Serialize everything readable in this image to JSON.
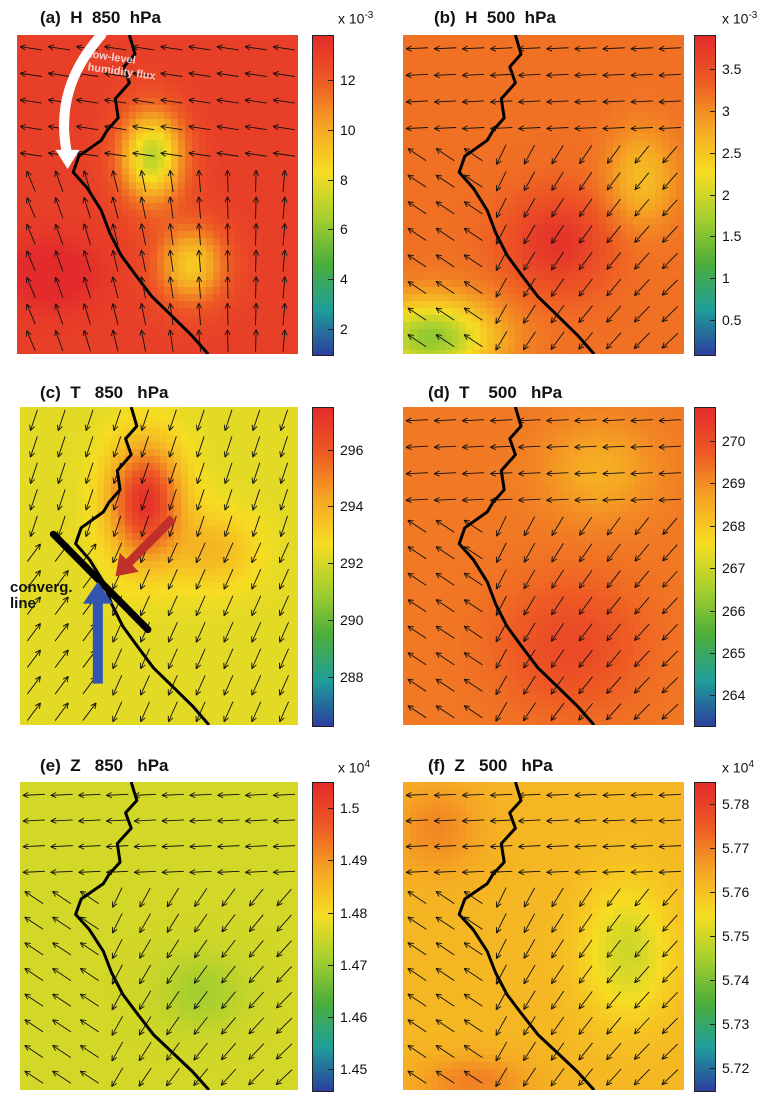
{
  "colorscale": [
    "#2b3f9e",
    "#1f9e9a",
    "#4cae3a",
    "#a6cf2e",
    "#f6dd22",
    "#f5a623",
    "#ee5a24",
    "#e32b2b"
  ],
  "annotations": {
    "flux_label": "low-level\nhumidity flux",
    "converg_label": "converg.\nline"
  },
  "chart_data": [
    {
      "panel": "a",
      "type": "heatmap",
      "title": "(a)  H  850  hPa",
      "variable": "H",
      "level_hPa": 850,
      "scale_label": "x 10",
      "scale_exponent": "-3",
      "colorbar": {
        "range": [
          1.0,
          13.8
        ],
        "ticks": [
          2,
          4,
          6,
          8,
          10,
          12
        ],
        "tick_labels": [
          "2",
          "4",
          "6",
          "8",
          "10",
          "12"
        ]
      },
      "field": {
        "base": 13.0,
        "lows": [
          [
            0.48,
            0.38,
            0.11,
            0.14,
            6.0
          ],
          [
            0.62,
            0.72,
            0.12,
            0.12,
            4.0
          ]
        ],
        "highs": [
          [
            0.12,
            0.75,
            0.15,
            0.1,
            1.5
          ]
        ]
      },
      "wind_pattern": "westward-north",
      "annotations": [
        "low-level humidity flux"
      ]
    },
    {
      "panel": "b",
      "type": "heatmap",
      "title": "(b)  H  500  hPa",
      "variable": "H",
      "level_hPa": 500,
      "scale_label": "x 10",
      "scale_exponent": "-3",
      "colorbar": {
        "range": [
          0.1,
          3.9
        ],
        "ticks": [
          0.5,
          1,
          1.5,
          2,
          2.5,
          3,
          3.5
        ],
        "tick_labels": [
          "0.5",
          "1",
          "1.5",
          "2",
          "2.5",
          "3",
          "3.5"
        ]
      },
      "field": {
        "base": 3.2,
        "lows": [
          [
            0.1,
            0.95,
            0.22,
            0.12,
            1.6
          ],
          [
            0.85,
            0.45,
            0.12,
            0.15,
            0.6
          ]
        ],
        "highs": [
          [
            0.55,
            0.65,
            0.18,
            0.15,
            0.6
          ]
        ]
      },
      "wind_pattern": "westward",
      "annotations": []
    },
    {
      "panel": "c",
      "type": "heatmap",
      "title": "(c)  T   850   hPa",
      "variable": "T",
      "level_hPa": 850,
      "scale_label": "",
      "scale_exponent": "",
      "colorbar": {
        "range": [
          286.3,
          297.5
        ],
        "ticks": [
          288,
          290,
          292,
          294,
          296
        ],
        "tick_labels": [
          "288",
          "290",
          "292",
          "294",
          "296"
        ]
      },
      "field": {
        "base": 292.3,
        "lows": [],
        "highs": [
          [
            0.45,
            0.3,
            0.13,
            0.18,
            5.0
          ],
          [
            0.7,
            0.45,
            0.15,
            0.12,
            1.5
          ]
        ]
      },
      "wind_pattern": "southward-converge",
      "annotations": [
        "converg. line"
      ]
    },
    {
      "panel": "d",
      "type": "heatmap",
      "title": "(d)  T    500   hPa",
      "variable": "T",
      "level_hPa": 500,
      "scale_label": "",
      "scale_exponent": "",
      "colorbar": {
        "range": [
          263.3,
          270.8
        ],
        "ticks": [
          264,
          265,
          266,
          267,
          268,
          269,
          270
        ],
        "tick_labels": [
          "264",
          "265",
          "266",
          "267",
          "268",
          "269",
          "270"
        ]
      },
      "field": {
        "base": 269.3,
        "lows": [
          [
            0.7,
            0.2,
            0.2,
            0.15,
            0.8
          ]
        ],
        "highs": [
          [
            0.6,
            0.75,
            0.25,
            0.2,
            0.8
          ]
        ]
      },
      "wind_pattern": "westward",
      "annotations": []
    },
    {
      "panel": "e",
      "type": "heatmap",
      "title": "(e)  Z   850   hPa",
      "variable": "Z",
      "level_hPa": 850,
      "scale_label": "x 10",
      "scale_exponent": "4",
      "colorbar": {
        "range": [
          1.446,
          1.505
        ],
        "ticks": [
          1.45,
          1.46,
          1.47,
          1.48,
          1.49,
          1.5
        ],
        "tick_labels": [
          "1.45",
          "1.46",
          "1.47",
          "1.48",
          "1.49",
          "1.5"
        ]
      },
      "field": {
        "base": 1.476,
        "lows": [
          [
            0.65,
            0.68,
            0.15,
            0.12,
            0.005
          ]
        ],
        "highs": []
      },
      "wind_pattern": "westward",
      "annotations": []
    },
    {
      "panel": "f",
      "type": "heatmap",
      "title": "(f)  Z   500   hPa",
      "variable": "Z",
      "level_hPa": 500,
      "scale_label": "x 10",
      "scale_exponent": "4",
      "colorbar": {
        "range": [
          5.715,
          5.785
        ],
        "ticks": [
          5.72,
          5.73,
          5.74,
          5.75,
          5.76,
          5.77,
          5.78
        ],
        "tick_labels": [
          "5.72",
          "5.73",
          "5.74",
          "5.75",
          "5.76",
          "5.77",
          "5.78"
        ]
      },
      "field": {
        "base": 5.762,
        "lows": [
          [
            0.8,
            0.55,
            0.16,
            0.22,
            0.012
          ]
        ],
        "highs": [
          [
            0.12,
            0.15,
            0.16,
            0.15,
            0.007
          ],
          [
            0.25,
            0.97,
            0.2,
            0.08,
            0.008
          ]
        ]
      },
      "wind_pattern": "westward",
      "annotations": []
    }
  ]
}
